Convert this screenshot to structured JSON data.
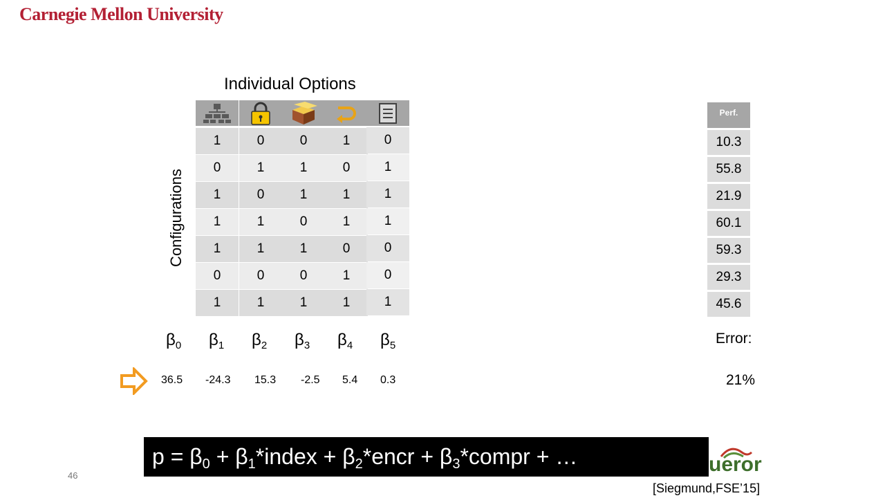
{
  "header": {
    "logo_text": "Carnegie Mellon University",
    "logo_color": "#b32034"
  },
  "table": {
    "title": "Individual Options",
    "row_label": "Configurations",
    "option_icons": [
      "hierarchy-icon",
      "padlock-icon",
      "box-icon",
      "undo-arrow-icon",
      "document-icon"
    ],
    "rows": [
      [
        "1",
        "0",
        "0",
        "1",
        "0"
      ],
      [
        "0",
        "1",
        "1",
        "0",
        "1"
      ],
      [
        "1",
        "0",
        "1",
        "1",
        "1"
      ],
      [
        "1",
        "1",
        "0",
        "1",
        "1"
      ],
      [
        "1",
        "1",
        "1",
        "0",
        "0"
      ],
      [
        "0",
        "0",
        "0",
        "1",
        "0"
      ],
      [
        "1",
        "1",
        "1",
        "1",
        "1"
      ]
    ]
  },
  "perf": {
    "header": "Perf.",
    "values": [
      "10.3",
      "55.8",
      "21.9",
      "60.1",
      "59.3",
      "29.3",
      "45.6"
    ]
  },
  "model": {
    "betas": [
      "0",
      "1",
      "2",
      "3",
      "4",
      "5"
    ],
    "coefficients": [
      "36.5",
      "-24.3",
      "15.3",
      "-2.5",
      "5.4",
      "0.3"
    ],
    "error_label": "Error:",
    "error_value": "21%"
  },
  "formula": {
    "p0": "p = β",
    "s0": "0",
    "p1": " + β",
    "s1": "1",
    "p2": "*index + β",
    "s2": "2",
    "p3": "*encr + β",
    "s3": "3",
    "p4": "*compr + …"
  },
  "footer": {
    "slide_number": "46",
    "citation": "[Siegmund,FSE’15]",
    "brand_fragment": "ueror"
  }
}
